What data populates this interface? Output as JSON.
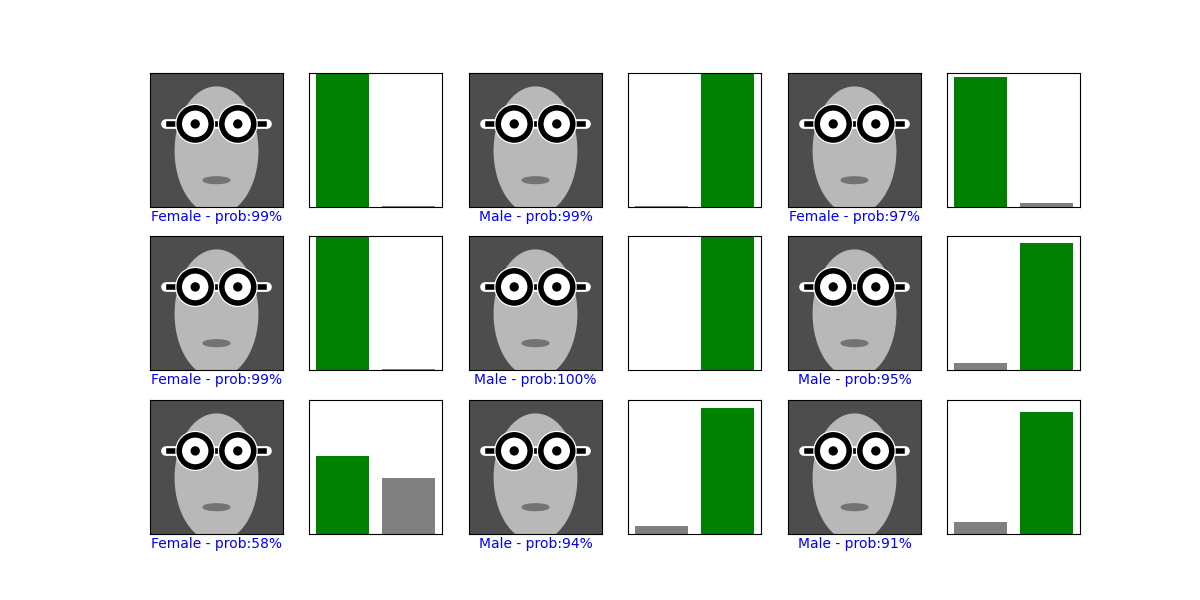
{
  "chart_data": [
    {
      "type": "image",
      "xlabel": "Female - prob:99%"
    },
    {
      "type": "bar",
      "categories": [
        null,
        null
      ],
      "values": [
        99,
        1
      ],
      "colors": [
        "#008000",
        "#808080"
      ],
      "ylim": [
        0,
        100
      ],
      "yticks": [],
      "tick_labels": false
    },
    {
      "type": "image",
      "xlabel": "Male - prob:99%"
    },
    {
      "type": "bar",
      "categories": [
        null,
        null
      ],
      "values": [
        1,
        99
      ],
      "colors": [
        "#808080",
        "#008000"
      ],
      "ylim": [
        0,
        100
      ],
      "yticks": [],
      "tick_labels": false
    },
    {
      "type": "image",
      "xlabel": "Female - prob:97%"
    },
    {
      "type": "bar",
      "categories": [
        null,
        null
      ],
      "values": [
        97,
        3
      ],
      "colors": [
        "#008000",
        "#808080"
      ],
      "ylim": [
        0,
        100
      ],
      "yticks": [],
      "tick_labels": false
    },
    {
      "type": "image",
      "xlabel": "Female - prob:99%"
    },
    {
      "type": "bar",
      "categories": [
        null,
        null
      ],
      "values": [
        99,
        1
      ],
      "colors": [
        "#008000",
        "#808080"
      ],
      "ylim": [
        0,
        100
      ],
      "yticks": [],
      "tick_labels": false
    },
    {
      "type": "image",
      "xlabel": "Male - prob:100%"
    },
    {
      "type": "bar",
      "categories": [
        null,
        null
      ],
      "values": [
        0,
        100
      ],
      "colors": [
        "#808080",
        "#008000"
      ],
      "ylim": [
        0,
        100
      ],
      "yticks": [],
      "tick_labels": false
    },
    {
      "type": "image",
      "xlabel": "Male - prob:95%"
    },
    {
      "type": "bar",
      "categories": [
        null,
        null
      ],
      "values": [
        5,
        95
      ],
      "colors": [
        "#808080",
        "#008000"
      ],
      "ylim": [
        0,
        100
      ],
      "yticks": [],
      "tick_labels": false
    },
    {
      "type": "image",
      "xlabel": "Female - prob:58%"
    },
    {
      "type": "bar",
      "categories": [
        null,
        null
      ],
      "values": [
        58,
        42
      ],
      "colors": [
        "#008000",
        "#808080"
      ],
      "ylim": [
        0,
        100
      ],
      "yticks": [],
      "tick_labels": false
    },
    {
      "type": "image",
      "xlabel": "Male - prob:94%"
    },
    {
      "type": "bar",
      "categories": [
        null,
        null
      ],
      "values": [
        6,
        94
      ],
      "colors": [
        "#808080",
        "#008000"
      ],
      "ylim": [
        0,
        100
      ],
      "yticks": [],
      "tick_labels": false
    },
    {
      "type": "image",
      "xlabel": "Male - prob:91%"
    },
    {
      "type": "bar",
      "categories": [
        null,
        null
      ],
      "values": [
        9,
        91
      ],
      "colors": [
        "#808080",
        "#008000"
      ],
      "ylim": [
        0,
        100
      ],
      "yticks": [],
      "tick_labels": false
    }
  ]
}
